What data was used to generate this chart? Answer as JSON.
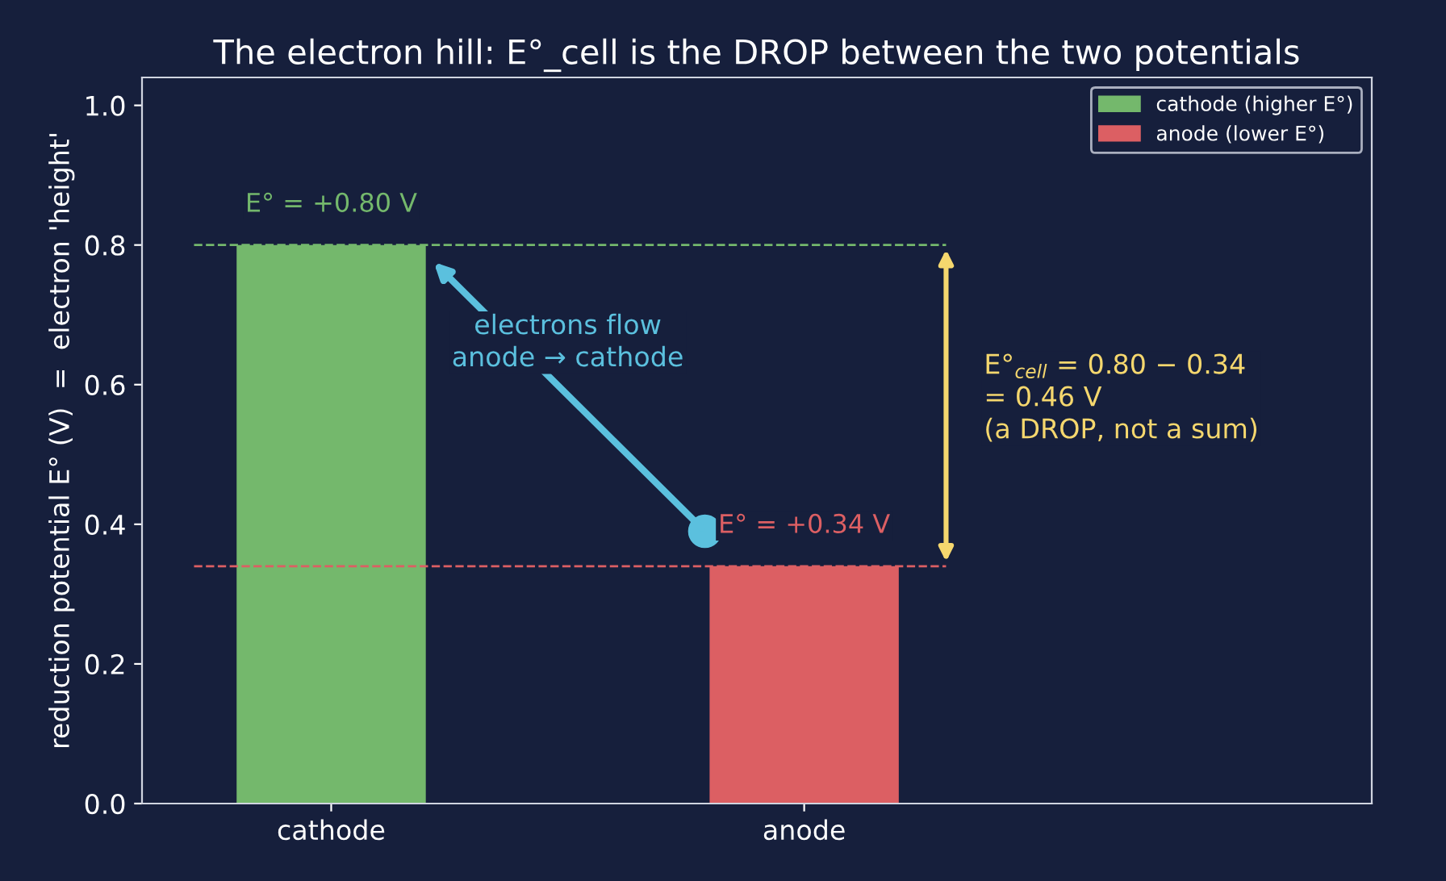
{
  "chart_data": {
    "type": "bar",
    "title": "The electron hill: E°_cell is the DROP between the two potentials",
    "ylabel": "reduction potential E° (V)  =  electron 'height'",
    "categories": [
      "cathode",
      "anode"
    ],
    "series": [
      {
        "name": "cathode (higher E°)",
        "color": "#74b86c",
        "values": [
          0.8,
          null
        ]
      },
      {
        "name": "anode (lower E°)",
        "color": "#dc5f63",
        "values": [
          null,
          0.34
        ]
      }
    ],
    "ylim": [
      0,
      1.04
    ],
    "yticks": [
      {
        "value": 0,
        "label": "0.0"
      },
      {
        "value": 0.2,
        "label": "0.2"
      },
      {
        "value": 0.4,
        "label": "0.4"
      },
      {
        "value": 0.6,
        "label": "0.6"
      },
      {
        "value": 0.8,
        "label": "0.8"
      },
      {
        "value": 1,
        "label": "1.0"
      }
    ],
    "ref_lines": [
      {
        "axis": "y",
        "value": 0.8,
        "label": "E° = +0.80 V",
        "color": "#74b86c",
        "line_style": "dashed"
      },
      {
        "axis": "y",
        "value": 0.34,
        "label": "E° = +0.34 V",
        "color": "#dc5f63",
        "line_style": "dashed"
      }
    ],
    "annotations": [
      "electrons flow\nanode → cathode",
      "E°$_{cell}$ = 0.80 − 0.34\n= 0.46 V\n(a DROP, not a sum)"
    ],
    "grid": false,
    "legend": "top right"
  }
}
